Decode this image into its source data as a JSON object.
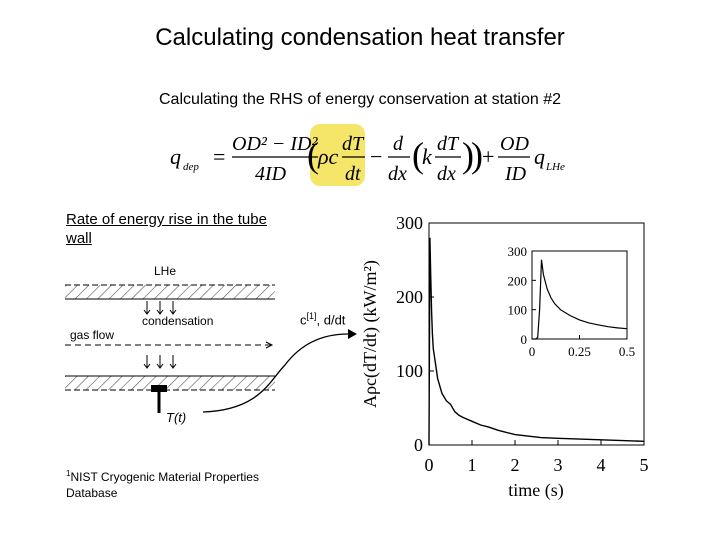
{
  "title": "Calculating condensation heat transfer",
  "subtitle": "Calculating the RHS of energy conservation at station #2",
  "equation": {
    "lhs": "q",
    "lhs_sub": "dep",
    "frac1_num": "OD² − ID²",
    "frac1_den": "4ID",
    "rho_c": "ρc",
    "dT": "dT",
    "dt": "dt",
    "minus": "−",
    "d": "d",
    "dx": "dx",
    "k": "k",
    "plus": "+",
    "od": "OD",
    "id": "ID",
    "q": "q",
    "q_sub": "LHe",
    "highlight_color": "#f5e66a"
  },
  "rate_label": "Rate of energy rise in the tube wall",
  "schematic": {
    "lhe_label": "LHe",
    "condensation_label": "condensation",
    "gas_flow_label": "gas flow",
    "sensor_label": "T(t)"
  },
  "ref_label": {
    "prefix": "c",
    "sup": "[1]",
    "suffix": ", d/dt"
  },
  "footnote": {
    "sup": "1",
    "text": "NIST Cryogenic Material Properties Database"
  },
  "chart_data": {
    "type": "line",
    "title": "",
    "xlabel": "time (s)",
    "ylabel": "Aρc(dT/dt) (kW/m²)",
    "xlim": [
      0,
      5
    ],
    "ylim": [
      0,
      300
    ],
    "xticks": [
      "0",
      "1",
      "2",
      "3",
      "4",
      "5"
    ],
    "yticks": [
      "0",
      "100",
      "200",
      "300"
    ],
    "grid": false,
    "series": [
      {
        "x": [
          0,
          0.02,
          0.04,
          0.06,
          0.08,
          0.1,
          0.15,
          0.2,
          0.3,
          0.4,
          0.5,
          0.6,
          0.7,
          0.8,
          1.0,
          1.2,
          1.4,
          1.6,
          1.8,
          2.0,
          2.3,
          2.6,
          3.0,
          3.5,
          4.0,
          4.5,
          5.0
        ],
        "y": [
          0,
          280,
          230,
          180,
          150,
          130,
          110,
          90,
          70,
          60,
          55,
          45,
          40,
          37,
          32,
          27,
          24,
          20,
          17,
          14,
          12,
          10,
          9,
          8,
          7,
          6,
          5
        ]
      }
    ],
    "inset": {
      "xlim": [
        0,
        0.5
      ],
      "ylim": [
        0,
        300
      ],
      "xticks": [
        "0",
        "0.25",
        "0.5"
      ],
      "yticks": [
        "0",
        "100",
        "200",
        "300"
      ],
      "x": [
        0,
        0.02,
        0.03,
        0.04,
        0.05,
        0.06,
        0.08,
        0.1,
        0.12,
        0.15,
        0.2,
        0.25,
        0.3,
        0.35,
        0.4,
        0.45,
        0.5
      ],
      "y": [
        0,
        0,
        5,
        100,
        270,
        220,
        170,
        140,
        120,
        100,
        80,
        65,
        55,
        48,
        42,
        38,
        35
      ]
    }
  }
}
